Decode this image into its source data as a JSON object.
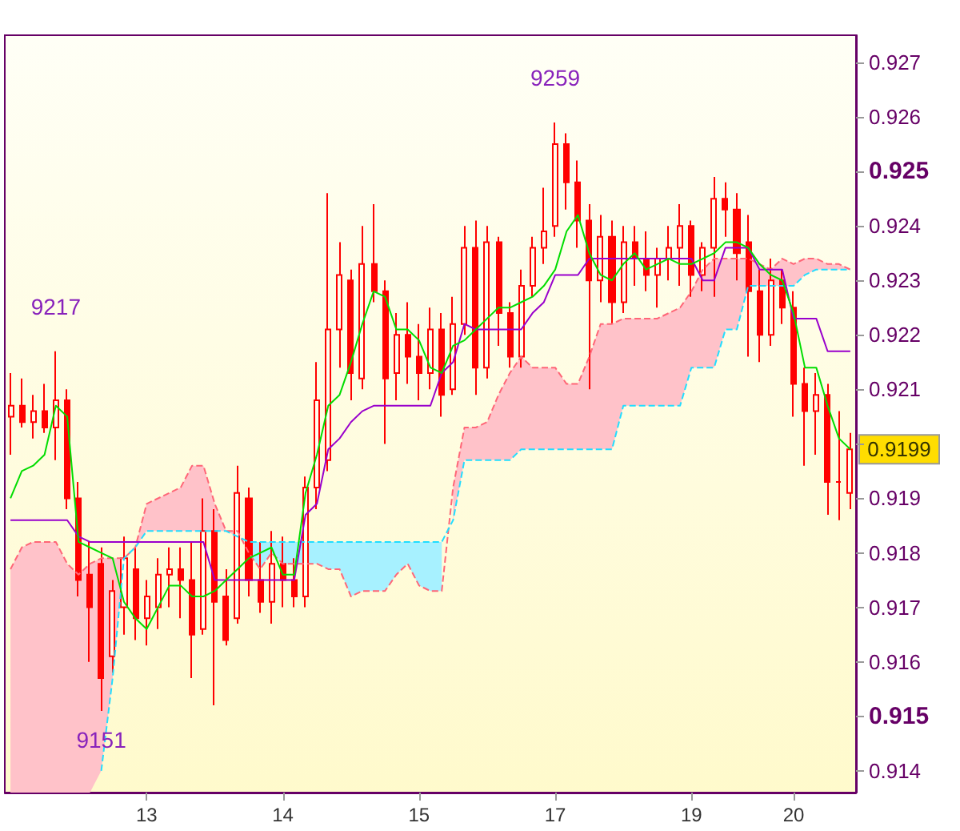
{
  "chart_data": {
    "type": "candlestick",
    "color": "#ff0000",
    "categories": [
      null,
      null,
      null,
      null,
      null,
      null,
      null,
      null,
      null,
      null,
      null,
      null,
      "13",
      null,
      null,
      null,
      null,
      null,
      null,
      null,
      null,
      null,
      null,
      null,
      "14",
      null,
      null,
      null,
      null,
      null,
      null,
      null,
      null,
      null,
      null,
      null,
      "15",
      null,
      null,
      null,
      null,
      null,
      null,
      null,
      null,
      null,
      null,
      null,
      "17",
      null,
      null,
      null,
      null,
      null,
      null,
      null,
      null,
      null,
      null,
      null,
      "19",
      null,
      null,
      null,
      null,
      null,
      null,
      null,
      null,
      "20",
      null,
      null,
      null,
      null,
      null
    ],
    "ohlc": [
      [
        0.9205,
        0.9213,
        0.9198,
        0.9207
      ],
      [
        0.9207,
        0.9212,
        0.9203,
        0.9204
      ],
      [
        0.9204,
        0.9209,
        0.9201,
        0.9206
      ],
      [
        0.9206,
        0.9211,
        0.9202,
        0.9203
      ],
      [
        0.9203,
        0.9217,
        0.9197,
        0.9208
      ],
      [
        0.9208,
        0.921,
        0.9188,
        0.919
      ],
      [
        0.919,
        0.9193,
        0.9172,
        0.9175
      ],
      [
        0.9176,
        0.9182,
        0.916,
        0.917
      ],
      [
        0.9178,
        0.9181,
        0.9151,
        0.9157
      ],
      [
        0.9161,
        0.9175,
        0.9158,
        0.9173
      ],
      [
        0.917,
        0.9183,
        0.9165,
        0.9179
      ],
      [
        0.9177,
        0.9181,
        0.9164,
        0.9168
      ],
      [
        0.9168,
        0.9175,
        0.9163,
        0.9172
      ],
      [
        0.917,
        0.9179,
        0.9166,
        0.9176
      ],
      [
        0.9176,
        0.9181,
        0.917,
        0.9177
      ],
      [
        0.9177,
        0.9181,
        0.9168,
        0.9175
      ],
      [
        0.9175,
        0.9182,
        0.9157,
        0.9165
      ],
      [
        0.9166,
        0.919,
        0.9165,
        0.9184
      ],
      [
        0.9184,
        0.9188,
        0.9152,
        0.9171
      ],
      [
        0.9172,
        0.9177,
        0.9163,
        0.9164
      ],
      [
        0.9168,
        0.9196,
        0.9167,
        0.9191
      ],
      [
        0.919,
        0.9192,
        0.9172,
        0.9175
      ],
      [
        0.9175,
        0.9182,
        0.9169,
        0.9171
      ],
      [
        0.9171,
        0.9184,
        0.9167,
        0.9178
      ],
      [
        0.9178,
        0.9183,
        0.917,
        0.9175
      ],
      [
        0.9175,
        0.9179,
        0.917,
        0.9172
      ],
      [
        0.9172,
        0.9194,
        0.917,
        0.9192
      ],
      [
        0.9192,
        0.9215,
        0.9188,
        0.9208
      ],
      [
        0.9197,
        0.9246,
        0.9195,
        0.9221
      ],
      [
        0.9221,
        0.9237,
        0.9214,
        0.9231
      ],
      [
        0.923,
        0.9232,
        0.9208,
        0.9213
      ],
      [
        0.9212,
        0.924,
        0.921,
        0.9233
      ],
      [
        0.9233,
        0.9244,
        0.9226,
        0.9228
      ],
      [
        0.9228,
        0.923,
        0.92,
        0.9212
      ],
      [
        0.9213,
        0.9224,
        0.9208,
        0.922
      ],
      [
        0.922,
        0.9226,
        0.9211,
        0.9216
      ],
      [
        0.9216,
        0.9222,
        0.9208,
        0.9213
      ],
      [
        0.9213,
        0.9225,
        0.921,
        0.9221
      ],
      [
        0.9221,
        0.9224,
        0.9205,
        0.9209
      ],
      [
        0.921,
        0.9227,
        0.9209,
        0.9222
      ],
      [
        0.9222,
        0.924,
        0.922,
        0.9236
      ],
      [
        0.9236,
        0.9241,
        0.9209,
        0.9214
      ],
      [
        0.9214,
        0.924,
        0.9212,
        0.9237
      ],
      [
        0.9237,
        0.9238,
        0.9218,
        0.9224
      ],
      [
        0.9224,
        0.9226,
        0.9214,
        0.9216
      ],
      [
        0.9216,
        0.9232,
        0.9214,
        0.9229
      ],
      [
        0.9229,
        0.9238,
        0.9227,
        0.9236
      ],
      [
        0.9236,
        0.9247,
        0.9233,
        0.9239
      ],
      [
        0.924,
        0.9259,
        0.9238,
        0.9255
      ],
      [
        0.9255,
        0.9257,
        0.9243,
        0.9248
      ],
      [
        0.9248,
        0.9252,
        0.9236,
        0.9241
      ],
      [
        0.9241,
        0.9244,
        0.921,
        0.923
      ],
      [
        0.923,
        0.9242,
        0.9226,
        0.9238
      ],
      [
        0.9238,
        0.9241,
        0.9222,
        0.9226
      ],
      [
        0.9226,
        0.924,
        0.9224,
        0.9237
      ],
      [
        0.9237,
        0.924,
        0.9229,
        0.9234
      ],
      [
        0.9234,
        0.9239,
        0.9228,
        0.9231
      ],
      [
        0.9231,
        0.9236,
        0.9225,
        0.9234
      ],
      [
        0.9234,
        0.924,
        0.923,
        0.9236
      ],
      [
        0.9236,
        0.9244,
        0.9229,
        0.924
      ],
      [
        0.924,
        0.9241,
        0.9227,
        0.9231
      ],
      [
        0.9231,
        0.9237,
        0.9228,
        0.9236
      ],
      [
        0.9236,
        0.9249,
        0.9227,
        0.9245
      ],
      [
        0.9245,
        0.9248,
        0.9238,
        0.9243
      ],
      [
        0.9243,
        0.9246,
        0.923,
        0.9235
      ],
      [
        0.9237,
        0.9242,
        0.9216,
        0.9228
      ],
      [
        0.9228,
        0.9232,
        0.9215,
        0.922
      ],
      [
        0.922,
        0.9234,
        0.9218,
        0.923
      ],
      [
        0.923,
        0.9232,
        0.9222,
        0.9225
      ],
      [
        0.9225,
        0.9228,
        0.9205,
        0.9211
      ],
      [
        0.9211,
        0.9214,
        0.9196,
        0.9206
      ],
      [
        0.9206,
        0.9213,
        0.9198,
        0.9209
      ],
      [
        0.9209,
        0.9211,
        0.9187,
        0.9193
      ],
      [
        0.9193,
        0.9206,
        0.9186,
        0.9193
      ],
      [
        0.9191,
        0.9202,
        0.9188,
        0.9199
      ]
    ],
    "series": [
      {
        "type": "line",
        "color": "#ff6677",
        "line_style": "dashed",
        "values": [
          0.9177,
          0.9181,
          0.9182,
          0.9182,
          0.9182,
          0.9178,
          0.9176,
          0.9178,
          0.9179,
          0.9179,
          0.9179,
          0.9181,
          0.9189,
          0.919,
          0.9191,
          0.9192,
          0.9196,
          0.9196,
          0.9189,
          0.9184,
          0.9184,
          0.918,
          0.9177,
          0.918,
          0.9178,
          0.9178,
          0.9178,
          0.9178,
          0.9177,
          0.9177,
          0.9172,
          0.9173,
          0.9173,
          0.9173,
          0.9176,
          0.9178,
          0.9174,
          0.9173,
          0.9173,
          0.9192,
          0.9203,
          0.9203,
          0.9204,
          0.9209,
          0.9213,
          0.9216,
          0.9214,
          0.9214,
          0.9214,
          0.9211,
          0.9211,
          0.9216,
          0.9222,
          0.9222,
          0.9223,
          0.9223,
          0.9223,
          0.9223,
          0.9224,
          0.9225,
          0.9228,
          0.9232,
          0.9234,
          0.9234,
          0.9234,
          0.9234,
          0.9233,
          0.9232,
          0.9234,
          0.9233,
          0.9234,
          0.9234,
          0.9233,
          0.9233,
          0.9232
        ],
        "lower": [
          0.9136,
          0.9136,
          0.9136,
          0.9136,
          0.9136,
          0.9136,
          0.9136,
          0.9136,
          0.914,
          0.9157,
          0.9179,
          0.9181,
          0.9184,
          0.9184,
          0.9184,
          0.9184,
          0.9184,
          0.9184,
          0.9184,
          0.9184,
          0.9183,
          null,
          null,
          null,
          null,
          null,
          null,
          null,
          null,
          null,
          null,
          null,
          null,
          null,
          null,
          null,
          null,
          null,
          null,
          0.9186,
          0.9197,
          0.9197,
          0.9197,
          0.9197,
          0.9197,
          0.9199,
          0.9199,
          0.9199,
          0.9199,
          0.9199,
          0.9199,
          0.9199,
          0.9199,
          0.9199,
          0.9207,
          0.9207,
          0.9207,
          0.9207,
          0.9207,
          0.9207,
          0.9214,
          0.9214,
          0.9214,
          0.9221,
          0.9221,
          0.9229,
          0.9229,
          0.9229,
          0.9229,
          0.9229,
          0.9231,
          0.9232,
          0.9232,
          0.9232,
          0.9232
        ],
        "upper": [
          0.9177,
          0.9181,
          0.9182,
          0.9182,
          0.9182,
          0.9178,
          0.9176,
          0.9178,
          0.9179,
          0.9179,
          0.9179,
          0.9181,
          0.9189,
          0.919,
          0.9191,
          0.9192,
          0.9196,
          0.9196,
          0.9189,
          0.9184,
          0.9184,
          null,
          null,
          null,
          null,
          null,
          null,
          null,
          null,
          null,
          null,
          null,
          null,
          null,
          null,
          null,
          null,
          null,
          null,
          0.9192,
          0.9203,
          0.9203,
          0.9204,
          0.9209,
          0.9213,
          0.9216,
          0.9214,
          0.9214,
          0.9214,
          0.9211,
          0.9211,
          0.9216,
          0.9222,
          0.9222,
          0.9223,
          0.9223,
          0.9223,
          0.9223,
          0.9224,
          0.9225,
          0.9228,
          0.9232,
          0.9234,
          0.9234,
          0.9234,
          0.9234,
          0.9233,
          0.9232,
          0.9234,
          0.9233,
          0.9234,
          0.9234,
          0.9233,
          0.9233,
          0.9232
        ]
      },
      {
        "type": "line",
        "color": "#22ddff",
        "line_style": "dashed",
        "values": [
          null,
          null,
          null,
          null,
          null,
          null,
          null,
          null,
          0.914,
          0.9157,
          0.9179,
          0.9181,
          0.9184,
          0.9184,
          0.9184,
          0.9184,
          0.9184,
          0.9184,
          0.9184,
          0.9184,
          0.9183,
          0.9182,
          0.9182,
          0.9182,
          0.9182,
          0.9182,
          0.9182,
          0.9182,
          0.9182,
          0.9182,
          0.9182,
          0.9182,
          0.9182,
          0.9182,
          0.9182,
          0.9182,
          0.9182,
          0.9182,
          0.9182,
          0.9186,
          0.9197,
          0.9197,
          0.9197,
          0.9197,
          0.9197,
          0.9199,
          0.9199,
          0.9199,
          0.9199,
          0.9199,
          0.9199,
          0.9199,
          0.9199,
          0.9199,
          0.9207,
          0.9207,
          0.9207,
          0.9207,
          0.9207,
          0.9207,
          0.9214,
          0.9214,
          0.9214,
          0.9221,
          0.9221,
          0.9229,
          0.9229,
          0.9229,
          0.9229,
          0.9229,
          0.9231,
          0.9232,
          0.9232,
          0.9232,
          0.9232
        ],
        "lower": [
          null,
          null,
          null,
          null,
          null,
          null,
          null,
          null,
          null,
          null,
          null,
          null,
          null,
          null,
          null,
          null,
          null,
          null,
          null,
          null,
          null,
          0.918,
          0.9177,
          0.918,
          0.9178,
          0.9178,
          0.9178,
          0.9178,
          0.9177,
          0.9177,
          0.9172,
          0.9173,
          0.9173,
          0.9173,
          0.9176,
          0.9178,
          0.9174,
          0.9173,
          0.9173,
          null,
          null,
          null,
          null,
          null,
          null,
          null,
          null,
          null,
          null,
          null,
          null,
          null,
          null,
          null,
          null,
          null,
          null,
          null,
          null,
          null,
          null,
          null,
          null,
          null,
          null,
          null,
          null,
          null,
          null,
          null,
          null,
          null,
          null,
          null,
          null
        ],
        "upper": [
          null,
          null,
          null,
          null,
          null,
          null,
          null,
          null,
          null,
          null,
          null,
          null,
          null,
          null,
          null,
          null,
          null,
          null,
          null,
          null,
          null,
          0.9182,
          0.9182,
          0.9182,
          0.9182,
          0.9182,
          0.9182,
          0.9182,
          0.9182,
          0.9182,
          0.9182,
          0.9182,
          0.9182,
          0.9182,
          0.9182,
          0.9182,
          0.9182,
          0.9182,
          0.9182,
          null,
          null,
          null,
          null,
          null,
          null,
          null,
          null,
          null,
          null,
          null,
          null,
          null,
          null,
          null,
          null,
          null,
          null,
          null,
          null,
          null,
          null,
          null,
          null,
          null,
          null,
          null,
          null,
          null,
          null,
          null,
          null,
          null,
          null,
          null,
          null
        ]
      },
      {
        "type": "line",
        "color": "#9900cc",
        "values": [
          0.9186,
          0.9186,
          0.9186,
          0.9186,
          0.9186,
          0.9186,
          0.9183,
          0.9182,
          0.9182,
          0.9182,
          0.9182,
          0.9182,
          0.9182,
          0.9182,
          0.9182,
          0.9182,
          0.9182,
          0.9182,
          0.9175,
          0.9175,
          0.9175,
          0.9175,
          0.9175,
          0.9175,
          0.9175,
          0.9175,
          0.9187,
          0.9189,
          0.9199,
          0.9201,
          0.9204,
          0.9206,
          0.9207,
          0.9207,
          0.9207,
          0.9207,
          0.9207,
          0.9207,
          0.9213,
          0.9215,
          0.9222,
          0.9221,
          0.9221,
          0.9221,
          0.9221,
          0.9221,
          0.9224,
          0.9226,
          0.9231,
          0.9231,
          0.9231,
          0.9234,
          0.9234,
          0.9234,
          0.9234,
          0.9234,
          0.9234,
          0.9234,
          0.9234,
          0.9234,
          0.9234,
          0.923,
          0.923,
          0.9236,
          0.9236,
          0.9236,
          0.9232,
          0.9232,
          0.9232,
          0.9223,
          0.9223,
          0.9223,
          0.9217,
          0.9217,
          0.9217
        ]
      },
      {
        "type": "line",
        "color": "#00dd00",
        "values": [
          0.919,
          0.9195,
          0.9196,
          0.9198,
          0.9207,
          0.9205,
          0.9182,
          0.9181,
          0.918,
          0.9179,
          0.9171,
          0.9168,
          0.9166,
          0.917,
          0.9174,
          0.9174,
          0.9172,
          0.9172,
          0.9173,
          0.9175,
          0.9177,
          0.9179,
          0.918,
          0.9181,
          0.9176,
          0.9176,
          0.9191,
          0.9198,
          0.9207,
          0.9209,
          0.9215,
          0.9222,
          0.9228,
          0.9227,
          0.9221,
          0.9221,
          0.9219,
          0.9214,
          0.9213,
          0.9218,
          0.9219,
          0.9221,
          0.9223,
          0.9225,
          0.9225,
          0.9226,
          0.9227,
          0.9229,
          0.9232,
          0.9239,
          0.9242,
          0.9235,
          0.9231,
          0.923,
          0.9233,
          0.9235,
          0.9232,
          0.9233,
          0.9234,
          0.9233,
          0.9233,
          0.9234,
          0.9235,
          0.9237,
          0.9237,
          0.9236,
          0.9233,
          0.9231,
          0.923,
          0.9224,
          0.9214,
          0.9214,
          0.9207,
          0.9201,
          0.9199
        ]
      }
    ],
    "ylim": [
      0.9136,
      0.9275
    ],
    "yticks": [
      0.914,
      0.915,
      0.916,
      0.917,
      0.918,
      0.919,
      {
        "value": 0.92,
        "label": null
      },
      0.921,
      0.922,
      0.923,
      0.924,
      0.925,
      0.926,
      0.927
    ],
    "annotations": [
      {
        "text": "9217",
        "y": 0.9217
      },
      {
        "text": "9259",
        "y": 0.9259
      },
      {
        "text": "9151",
        "y": 0.9151
      },
      "0.9199"
    ],
    "grid": false,
    "marker": "none"
  }
}
